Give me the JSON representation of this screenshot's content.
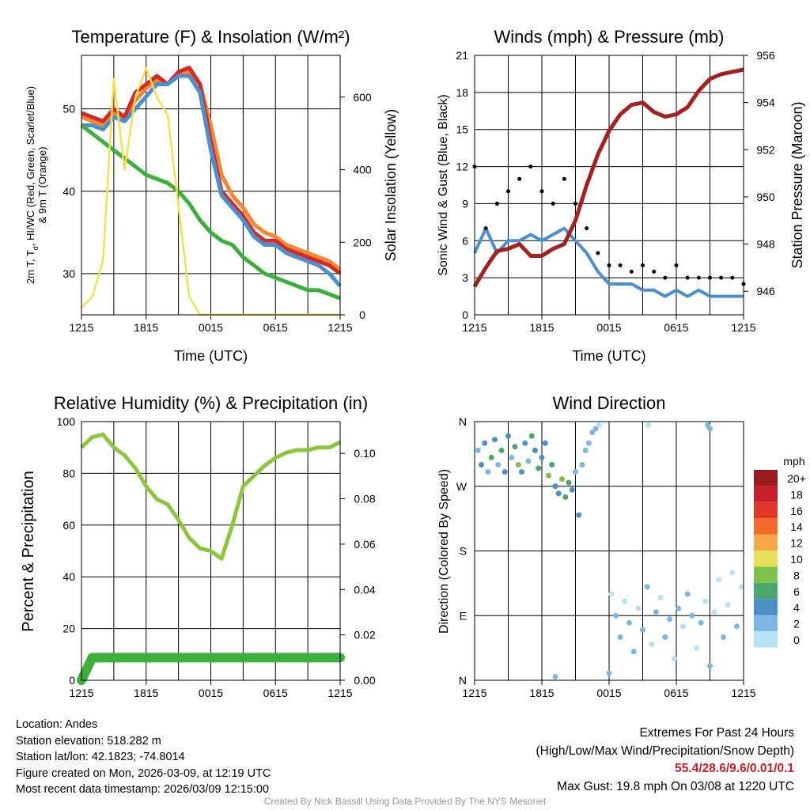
{
  "chart_data": [
    {
      "type": "line",
      "title": "Temperature (F) & Insolation (W/m²)",
      "xlabel": "Time (UTC)",
      "ylabel": "2m T, Td, HI/WC (Red, Green, Scarlet/Blue) & 9m T (Orange)",
      "ylabel_line1": "2m T, T",
      "ylabel_sub": "d",
      "ylabel_rest": ", HI/WC (Red, Green, Scarlet/Blue)",
      "ylabel_line2": "& 9m T (Orange)",
      "y2label": "Solar Insolation (Yellow)",
      "x_ticklabels": [
        "1215",
        "1815",
        "0015",
        "0615",
        "1215"
      ],
      "x_hours": [
        0,
        1,
        2,
        3,
        4,
        5,
        6,
        7,
        8,
        9,
        10,
        11,
        12,
        13,
        14,
        15,
        16,
        17,
        18,
        19,
        20,
        21,
        22,
        23,
        24
      ],
      "xlim": [
        0,
        24
      ],
      "ylim": [
        25,
        56.5
      ],
      "yticks": [
        30,
        40,
        50
      ],
      "y2lim": [
        0,
        715
      ],
      "y2ticks": [
        0,
        200,
        400,
        600
      ],
      "series": [
        {
          "name": "9m T",
          "color": "#f58634",
          "axis": "left",
          "values": [
            49,
            48.5,
            48,
            49.5,
            49,
            51,
            52.5,
            53.5,
            53,
            54,
            54.5,
            53,
            48,
            42,
            39.5,
            38,
            36,
            35,
            34.5,
            33.5,
            33,
            32.5,
            32,
            31.5,
            30.5
          ]
        },
        {
          "name": "2m T",
          "color": "#d42a24",
          "axis": "left",
          "values": [
            49.5,
            49,
            48.5,
            50,
            49,
            52,
            53,
            54,
            53,
            54.5,
            55,
            53,
            46,
            40,
            38.5,
            37,
            35,
            34,
            34,
            33,
            32.5,
            32,
            31.5,
            31,
            30
          ]
        },
        {
          "name": "HI/WC",
          "color": "#4a90d0",
          "axis": "left",
          "values": [
            48,
            48,
            47.5,
            49,
            48.5,
            50,
            51.5,
            53,
            53,
            54,
            54,
            52,
            45,
            39.5,
            38,
            36.5,
            34.5,
            33.5,
            33.5,
            32.5,
            32,
            31.5,
            31,
            30,
            28.5
          ]
        },
        {
          "name": "Td",
          "color": "#3db03c",
          "axis": "left",
          "values": [
            48,
            47,
            46,
            45,
            44,
            43,
            42,
            41.5,
            41,
            40,
            38.5,
            36.5,
            35,
            34,
            33.5,
            32,
            31,
            30,
            29.5,
            29,
            28.5,
            28,
            28,
            27.5,
            27
          ]
        },
        {
          "name": "Solar Insolation",
          "color": "#f5e050",
          "axis": "right",
          "values": [
            20,
            50,
            150,
            650,
            400,
            600,
            680,
            600,
            550,
            300,
            50,
            0,
            0,
            0,
            0,
            0,
            0,
            0,
            0,
            0,
            0,
            0,
            0,
            0,
            0
          ]
        }
      ]
    },
    {
      "type": "line",
      "title": "Winds (mph) & Pressure (mb)",
      "xlabel": "Time (UTC)",
      "ylabel": "Sonic Wind & Gust (Blue, Black)",
      "y2label": "Station Pressure (Maroon)",
      "x_ticklabels": [
        "1215",
        "1815",
        "0015",
        "0615",
        "1215"
      ],
      "x_hours": [
        0,
        1,
        2,
        3,
        4,
        5,
        6,
        7,
        8,
        9,
        10,
        11,
        12,
        13,
        14,
        15,
        16,
        17,
        18,
        19,
        20,
        21,
        22,
        23,
        24
      ],
      "xlim": [
        0,
        24
      ],
      "ylim": [
        0,
        21
      ],
      "yticks": [
        0,
        3,
        6,
        9,
        12,
        15,
        18,
        21
      ],
      "y2lim": [
        945,
        956
      ],
      "y2ticks": [
        946,
        948,
        950,
        952,
        954,
        956
      ],
      "series": [
        {
          "name": "Sonic Wind",
          "color": "#4a90d0",
          "axis": "left",
          "kind": "line",
          "values": [
            5,
            7,
            5,
            6,
            6,
            6.5,
            6,
            6.5,
            7,
            6,
            5,
            3.5,
            2.5,
            2.5,
            2.5,
            2,
            2,
            1.5,
            2,
            1.5,
            2,
            1.5,
            1.5,
            1.5,
            1.5
          ]
        },
        {
          "name": "Gust",
          "color": "#000000",
          "axis": "left",
          "kind": "scatter",
          "values": [
            12,
            7,
            9,
            10,
            11,
            12,
            10,
            9,
            11,
            9,
            7,
            5,
            4,
            4,
            3.5,
            4,
            3.5,
            3,
            4,
            3,
            3,
            3,
            3,
            3,
            2.5
          ]
        },
        {
          "name": "Station Pressure",
          "color": "#a52020",
          "axis": "right",
          "kind": "line",
          "values": [
            946.2,
            947,
            947.7,
            947.8,
            948,
            947.5,
            947.5,
            947.8,
            948,
            949,
            950.5,
            951.8,
            952.8,
            953.5,
            953.9,
            954,
            953.6,
            953.4,
            953.5,
            953.8,
            954.5,
            955,
            955.2,
            955.3,
            955.4
          ]
        }
      ]
    },
    {
      "type": "line",
      "title": "Relative Humidity (%) & Precipitation (in)",
      "ylabel": "Percent & Precipitation",
      "x_ticklabels": [
        "1215",
        "1815",
        "0015",
        "0615",
        "1215"
      ],
      "x_hours": [
        0,
        1,
        2,
        3,
        4,
        5,
        6,
        7,
        8,
        9,
        10,
        11,
        12,
        13,
        14,
        15,
        16,
        17,
        18,
        19,
        20,
        21,
        22,
        23,
        24
      ],
      "xlim": [
        0,
        24
      ],
      "ylim": [
        0,
        100
      ],
      "yticks": [
        0,
        20,
        40,
        60,
        80,
        100
      ],
      "y2lim": [
        0,
        0.114
      ],
      "y2ticks": [
        "0.00",
        "0.02",
        "0.04",
        "0.06",
        "0.08",
        "0.10"
      ],
      "series": [
        {
          "name": "Relative Humidity",
          "color": "#8cc63f",
          "axis": "left",
          "values": [
            90,
            94,
            95,
            90,
            87,
            82,
            75,
            70,
            68,
            62,
            55,
            51,
            50,
            47,
            60,
            75,
            79,
            83,
            86,
            88,
            89,
            89,
            90,
            90,
            92
          ]
        },
        {
          "name": "Precipitation",
          "color": "#3db03c",
          "axis": "right",
          "values": [
            0,
            0.01,
            0.01,
            0.01,
            0.01,
            0.01,
            0.01,
            0.01,
            0.01,
            0.01,
            0.01,
            0.01,
            0.01,
            0.01,
            0.01,
            0.01,
            0.01,
            0.01,
            0.01,
            0.01,
            0.01,
            0.01,
            0.01,
            0.01,
            0.01
          ]
        }
      ]
    },
    {
      "type": "scatter",
      "title": "Wind Direction",
      "ylabel": "Direction (Colored By Speed)",
      "x_ticklabels": [
        "1215",
        "1815",
        "0015",
        "0615",
        "1215"
      ],
      "xlim": [
        0,
        24
      ],
      "ylim": [
        0,
        360
      ],
      "yticklabels": [
        "N",
        "E",
        "S",
        "W",
        "N"
      ],
      "legend_title": "mph",
      "legend_labels": [
        "20+",
        "18",
        "16",
        "14",
        "12",
        "10",
        "8",
        "6",
        "4",
        "2",
        "0"
      ],
      "legend_colors": [
        "#9b1c1f",
        "#c8202a",
        "#e2362b",
        "#f26a2c",
        "#f8a84a",
        "#e9e05a",
        "#7dc24b",
        "#4aa66a",
        "#4a8fc6",
        "#7db8e2",
        "#b8e2f6"
      ],
      "points": [
        [
          0.3,
          320,
          3
        ],
        [
          0.6,
          300,
          4
        ],
        [
          0.9,
          330,
          5
        ],
        [
          1.2,
          290,
          3
        ],
        [
          1.5,
          310,
          6
        ],
        [
          1.8,
          335,
          4
        ],
        [
          2.1,
          300,
          2
        ],
        [
          2.4,
          320,
          7
        ],
        [
          2.7,
          290,
          4
        ],
        [
          3.0,
          340,
          5
        ],
        [
          3.3,
          310,
          3
        ],
        [
          3.6,
          325,
          6
        ],
        [
          3.9,
          300,
          8
        ],
        [
          4.2,
          290,
          4
        ],
        [
          4.5,
          330,
          5
        ],
        [
          4.8,
          305,
          3
        ],
        [
          5.1,
          340,
          7
        ],
        [
          5.4,
          320,
          4
        ],
        [
          5.7,
          295,
          6
        ],
        [
          6.0,
          310,
          5
        ],
        [
          6.3,
          330,
          4
        ],
        [
          6.6,
          285,
          8
        ],
        [
          6.9,
          300,
          6
        ],
        [
          7.2,
          270,
          4
        ],
        [
          7.5,
          260,
          5
        ],
        [
          7.8,
          280,
          9
        ],
        [
          8.1,
          255,
          6
        ],
        [
          8.4,
          275,
          7
        ],
        [
          8.7,
          265,
          4
        ],
        [
          9.0,
          290,
          3
        ],
        [
          9.3,
          230,
          4
        ],
        [
          9.6,
          300,
          2
        ],
        [
          9.9,
          320,
          3
        ],
        [
          10.2,
          330,
          2
        ],
        [
          10.5,
          345,
          2
        ],
        [
          10.8,
          350,
          3
        ],
        [
          11.1,
          355,
          1
        ],
        [
          15.5,
          355,
          1
        ],
        [
          20.8,
          355,
          2
        ],
        [
          21.0,
          350,
          2
        ],
        [
          12.2,
          120,
          1
        ],
        [
          12.6,
          90,
          2
        ],
        [
          13.0,
          60,
          3
        ],
        [
          13.4,
          110,
          1
        ],
        [
          13.8,
          80,
          2
        ],
        [
          14.2,
          40,
          2
        ],
        [
          14.6,
          100,
          1
        ],
        [
          15.0,
          70,
          3
        ],
        [
          15.4,
          130,
          2
        ],
        [
          15.8,
          50,
          1
        ],
        [
          16.2,
          95,
          2
        ],
        [
          16.6,
          115,
          1
        ],
        [
          17.0,
          60,
          2
        ],
        [
          17.4,
          85,
          3
        ],
        [
          17.8,
          30,
          1
        ],
        [
          18.2,
          100,
          2
        ],
        [
          18.6,
          75,
          1
        ],
        [
          19.0,
          120,
          2
        ],
        [
          19.4,
          90,
          3
        ],
        [
          19.8,
          45,
          1
        ],
        [
          20.2,
          80,
          2
        ],
        [
          20.6,
          110,
          1
        ],
        [
          21.0,
          20,
          2
        ],
        [
          21.4,
          95,
          1
        ],
        [
          21.8,
          140,
          1
        ],
        [
          22.2,
          60,
          2
        ],
        [
          22.6,
          105,
          1
        ],
        [
          23.0,
          150,
          1
        ],
        [
          23.4,
          75,
          2
        ],
        [
          23.8,
          130,
          1
        ],
        [
          7.2,
          5,
          2
        ],
        [
          12.0,
          10,
          2
        ]
      ]
    }
  ],
  "info": {
    "location": "Location: Andes",
    "elevation": "Station elevation: 518.282 m",
    "latlon": "Station lat/lon: 42.1823; -74.8014",
    "created": "Figure created on Mon, 2026-03-09, at 12:19 UTC",
    "recent": "Most recent data timestamp: 2026/03/09 12:15:00"
  },
  "extremes": {
    "title": "Extremes For Past 24 Hours",
    "subtitle": "(High/Low/Max Wind/Precipitation/Snow Depth)",
    "values": "55.4/28.6/9.6/0.01/0.1",
    "max_gust": "Max Gust: 19.8 mph On 03/08 at 1220 UTC"
  },
  "credit": "Created By Nick Bassill Using Data Provided By The NYS Mesonet"
}
